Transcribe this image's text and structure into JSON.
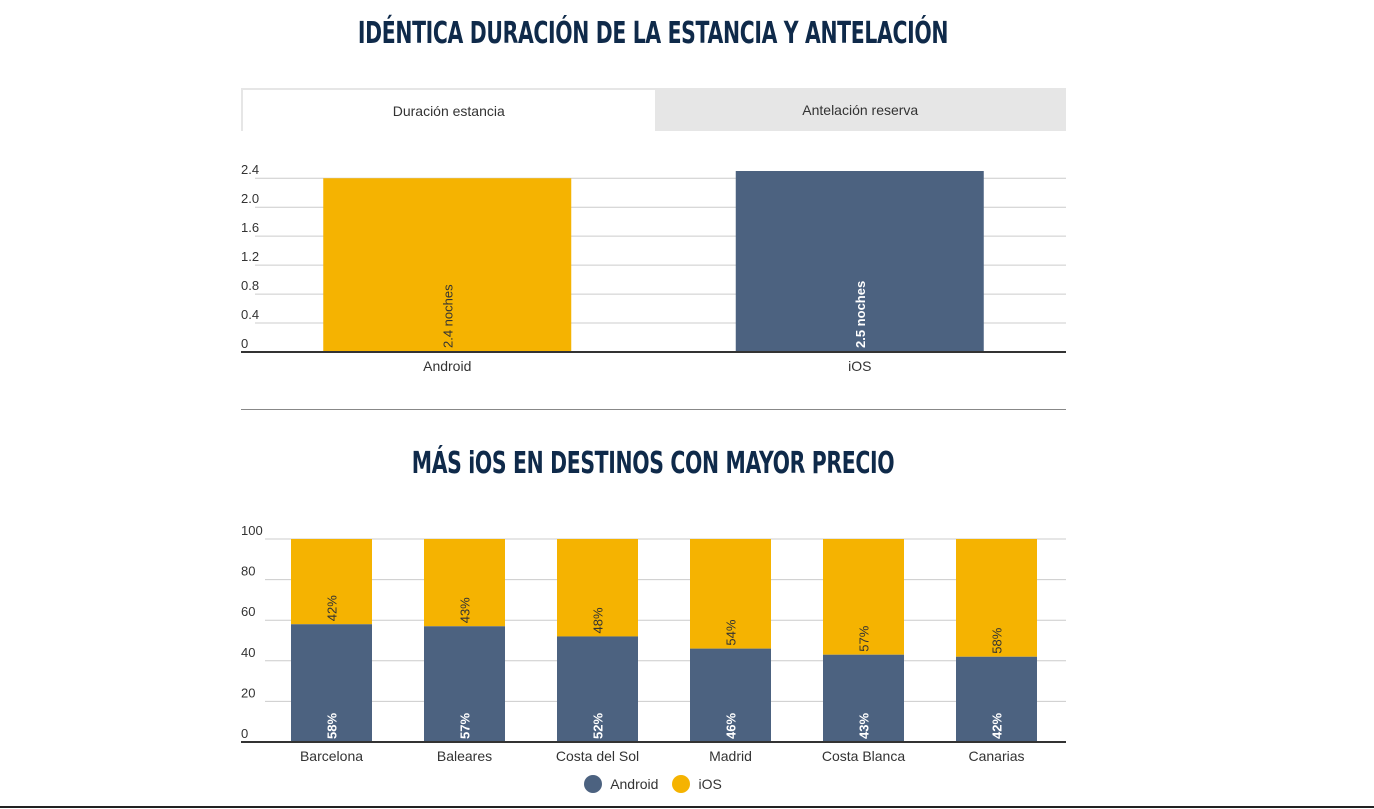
{
  "colors": {
    "android": "#4c6280",
    "ios": "#f5b301",
    "title": "#0f2a4a"
  },
  "tabs": [
    {
      "label": "Duración estancia",
      "active": true
    },
    {
      "label": "Antelación reserva",
      "active": false
    }
  ],
  "chart_data": [
    {
      "type": "bar",
      "title": "IDÉNTICA DURACIÓN DE LA ESTANCIA Y ANTELACIÓN",
      "categories": [
        "Android",
        "iOS"
      ],
      "values": [
        2.4,
        2.5
      ],
      "labels": [
        "2.4 noches",
        "2.5 noches"
      ],
      "yticks": [
        "0",
        "0.4",
        "0.8",
        "1.2",
        "1.6",
        "2.0",
        "2.4"
      ],
      "ylim": [
        0,
        2.5
      ],
      "grid": true
    },
    {
      "type": "bar",
      "stacked": true,
      "title": "MÁS iOS EN DESTINOS CON MAYOR PRECIO",
      "categories": [
        "Barcelona",
        "Baleares",
        "Costa del Sol",
        "Madrid",
        "Costa Blanca",
        "Canarias"
      ],
      "series": [
        {
          "name": "Android",
          "values": [
            58,
            57,
            52,
            46,
            43,
            42
          ],
          "labels": [
            "58%",
            "57%",
            "52%",
            "46%",
            "43%",
            "42%"
          ]
        },
        {
          "name": "iOS",
          "values": [
            42,
            43,
            48,
            54,
            57,
            58
          ],
          "labels": [
            "42%",
            "43%",
            "48%",
            "54%",
            "57%",
            "58%"
          ]
        }
      ],
      "yticks": [
        "0",
        "20",
        "40",
        "60",
        "80",
        "100"
      ],
      "ylim": [
        0,
        100
      ],
      "grid": true,
      "legend": "bottom-center"
    }
  ]
}
